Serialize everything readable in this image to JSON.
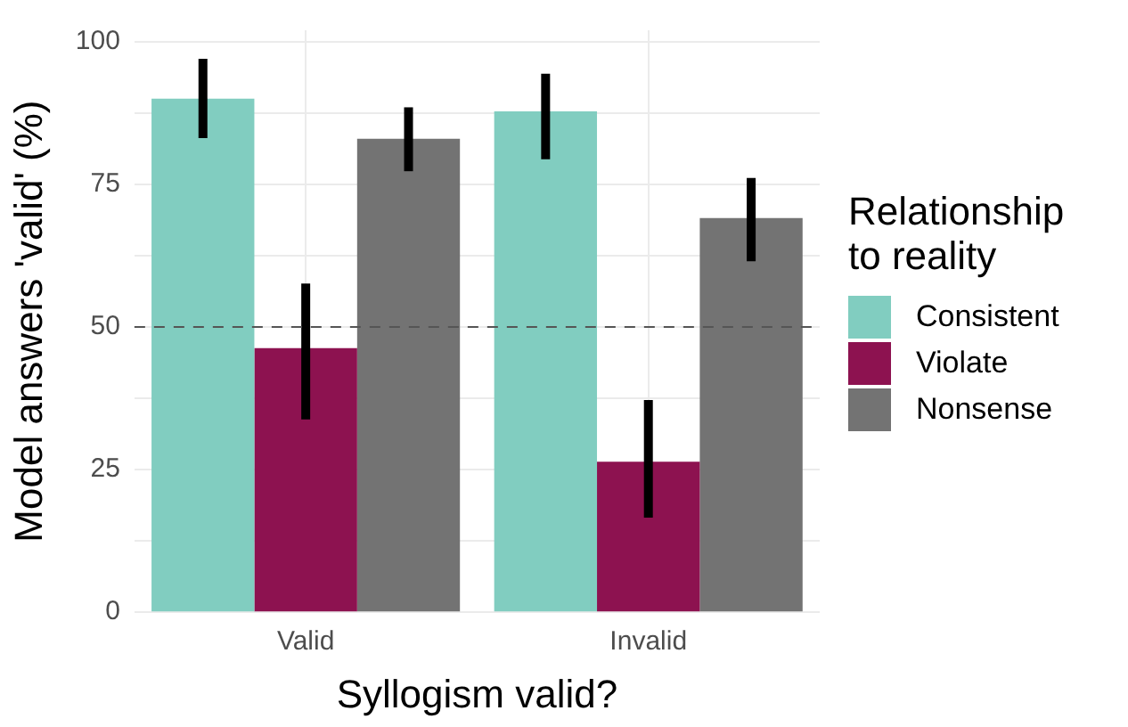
{
  "chart_data": {
    "type": "bar",
    "xlabel": "Syllogism valid?",
    "ylabel": "Model answers 'valid' (%)",
    "legend_title": "Relationship\nto reality",
    "categories": [
      "Valid",
      "Invalid"
    ],
    "series": [
      {
        "name": "Consistent",
        "color": "#81cdc0",
        "values": [
          90,
          87.8
        ],
        "errors": [
          [
            83.1,
            97
          ],
          [
            79.4,
            94.4
          ]
        ]
      },
      {
        "name": "Violate",
        "color": "#8d1250",
        "values": [
          46.3,
          26.4
        ],
        "errors": [
          [
            33.8,
            57.6
          ],
          [
            16.6,
            37.2
          ]
        ]
      },
      {
        "name": "Nonsense",
        "color": "#737373",
        "values": [
          83,
          69.1
        ],
        "errors": [
          [
            77.3,
            88.5
          ],
          [
            61.5,
            76.1
          ]
        ]
      }
    ],
    "ylim": [
      0,
      102
    ],
    "yticks": [
      0,
      {
        "value": 12.5,
        "label": null
      },
      25,
      {
        "value": 37.5,
        "label": null
      },
      50,
      {
        "value": 62.5,
        "label": null
      },
      75,
      {
        "value": 87.5,
        "label": null
      },
      100
    ],
    "ref_lines": [
      {
        "axis": "y",
        "value": 50,
        "color": "#555555",
        "line_style": "dashed"
      }
    ],
    "grid": true,
    "legend": "right"
  }
}
